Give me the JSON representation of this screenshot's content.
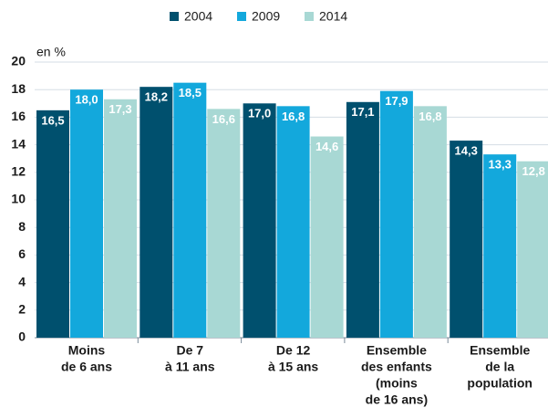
{
  "chart_data": {
    "type": "bar",
    "y_label": "en %",
    "categories": [
      [
        "Moins",
        "de 6 ans"
      ],
      [
        "De 7",
        "à 11 ans"
      ],
      [
        "De 12",
        "à 15 ans"
      ],
      [
        "Ensemble",
        "des enfants",
        "(moins",
        "de 16 ans)"
      ],
      [
        "Ensemble",
        "de la",
        "population"
      ]
    ],
    "series": [
      {
        "name": "2004",
        "color": "#00506e",
        "values": [
          16.5,
          18.2,
          17.0,
          17.1,
          14.3
        ],
        "value_labels": [
          "16,5",
          "18,2",
          "17,0",
          "17,1",
          "14,3"
        ]
      },
      {
        "name": "2009",
        "color": "#13a8dc",
        "values": [
          18.0,
          18.5,
          16.8,
          17.9,
          13.3
        ],
        "value_labels": [
          "18,0",
          "18,5",
          "16,8",
          "17,9",
          "13,3"
        ]
      },
      {
        "name": "2014",
        "color": "#a8d8d4",
        "values": [
          17.3,
          16.6,
          14.6,
          16.8,
          12.8
        ],
        "value_labels": [
          "17,3",
          "16,6",
          "14,6",
          "16,8",
          "12,8"
        ]
      }
    ],
    "ylim": [
      0,
      20
    ],
    "yticks": [
      0,
      2,
      4,
      6,
      8,
      10,
      12,
      14,
      16,
      18,
      20
    ],
    "grid": true
  }
}
